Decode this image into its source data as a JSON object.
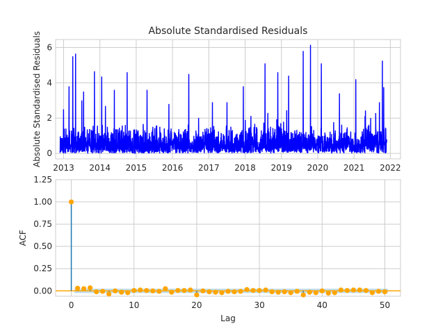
{
  "chart_data": [
    {
      "type": "line",
      "title": "Absolute Standardised Residuals",
      "xlabel": "",
      "ylabel": "Absolute Standardised Residuals",
      "x_ticks": [
        "2013",
        "2014",
        "2015",
        "2016",
        "2017",
        "2018",
        "2019",
        "2020",
        "2021",
        "2022"
      ],
      "y_ticks": [
        "0",
        "2",
        "4",
        "6"
      ],
      "xlim": [
        2012.78,
        2022.28
      ],
      "ylim": [
        -0.31,
        6.45
      ],
      "grid": true,
      "line_color": "#0000ff",
      "x_start": 2012.9,
      "x_end": 2021.9,
      "n_points": 2200,
      "spikes": [
        {
          "x": 2013.0,
          "y": 2.5
        },
        {
          "x": 2013.15,
          "y": 3.8
        },
        {
          "x": 2013.25,
          "y": 5.5
        },
        {
          "x": 2013.33,
          "y": 5.65
        },
        {
          "x": 2013.55,
          "y": 3.5
        },
        {
          "x": 2013.85,
          "y": 4.65
        },
        {
          "x": 2014.05,
          "y": 4.35
        },
        {
          "x": 2014.4,
          "y": 3.6
        },
        {
          "x": 2014.75,
          "y": 4.6
        },
        {
          "x": 2015.3,
          "y": 3.6
        },
        {
          "x": 2015.9,
          "y": 2.8
        },
        {
          "x": 2016.45,
          "y": 4.5
        },
        {
          "x": 2017.1,
          "y": 2.9
        },
        {
          "x": 2017.5,
          "y": 2.9
        },
        {
          "x": 2017.95,
          "y": 3.8
        },
        {
          "x": 2018.55,
          "y": 5.1
        },
        {
          "x": 2018.9,
          "y": 4.6
        },
        {
          "x": 2019.2,
          "y": 4.4
        },
        {
          "x": 2019.6,
          "y": 5.8
        },
        {
          "x": 2019.8,
          "y": 6.15
        },
        {
          "x": 2020.1,
          "y": 5.1
        },
        {
          "x": 2020.6,
          "y": 3.4
        },
        {
          "x": 2021.05,
          "y": 4.2
        },
        {
          "x": 2021.7,
          "y": 2.9
        },
        {
          "x": 2021.78,
          "y": 5.25
        },
        {
          "x": 2021.82,
          "y": 3.75
        }
      ]
    },
    {
      "type": "scatter",
      "title": "",
      "xlabel": "Lag",
      "ylabel": "ACF",
      "x_ticks": [
        "0",
        "10",
        "20",
        "30",
        "40",
        "50"
      ],
      "y_ticks": [
        "0.00",
        "0.25",
        "0.50",
        "0.75",
        "1.00",
        "1.25"
      ],
      "xlim": [
        -2.5,
        52.5
      ],
      "ylim": [
        -0.06,
        1.25
      ],
      "grid": true,
      "marker_color": "#ffa500",
      "stem_color": "#1f77b4",
      "zero_line_color": "#ffa500",
      "confidence_band": [
        -0.025,
        0.025
      ],
      "confidence_color": "#a6cfe3",
      "lags": [
        0,
        1,
        2,
        3,
        4,
        5,
        6,
        7,
        8,
        9,
        10,
        11,
        12,
        13,
        14,
        15,
        16,
        17,
        18,
        19,
        20,
        21,
        22,
        23,
        24,
        25,
        26,
        27,
        28,
        29,
        30,
        31,
        32,
        33,
        34,
        35,
        36,
        37,
        38,
        39,
        40,
        41,
        42,
        43,
        44,
        45,
        46,
        47,
        48,
        49,
        50
      ],
      "acf": [
        1.0,
        0.03,
        0.025,
        0.035,
        -0.01,
        -0.005,
        -0.035,
        0.0,
        -0.015,
        -0.02,
        0.005,
        0.01,
        0.005,
        0.0,
        -0.005,
        0.025,
        -0.015,
        0.005,
        0.005,
        0.01,
        -0.045,
        0.0,
        -0.01,
        -0.015,
        -0.02,
        -0.005,
        -0.01,
        -0.005,
        0.015,
        0.005,
        0.005,
        0.01,
        -0.01,
        -0.015,
        -0.01,
        -0.02,
        -0.005,
        -0.045,
        -0.015,
        -0.02,
        0.0,
        -0.025,
        -0.02,
        0.01,
        0.005,
        0.01,
        0.01,
        0.005,
        -0.02,
        -0.005,
        -0.01
      ]
    }
  ]
}
